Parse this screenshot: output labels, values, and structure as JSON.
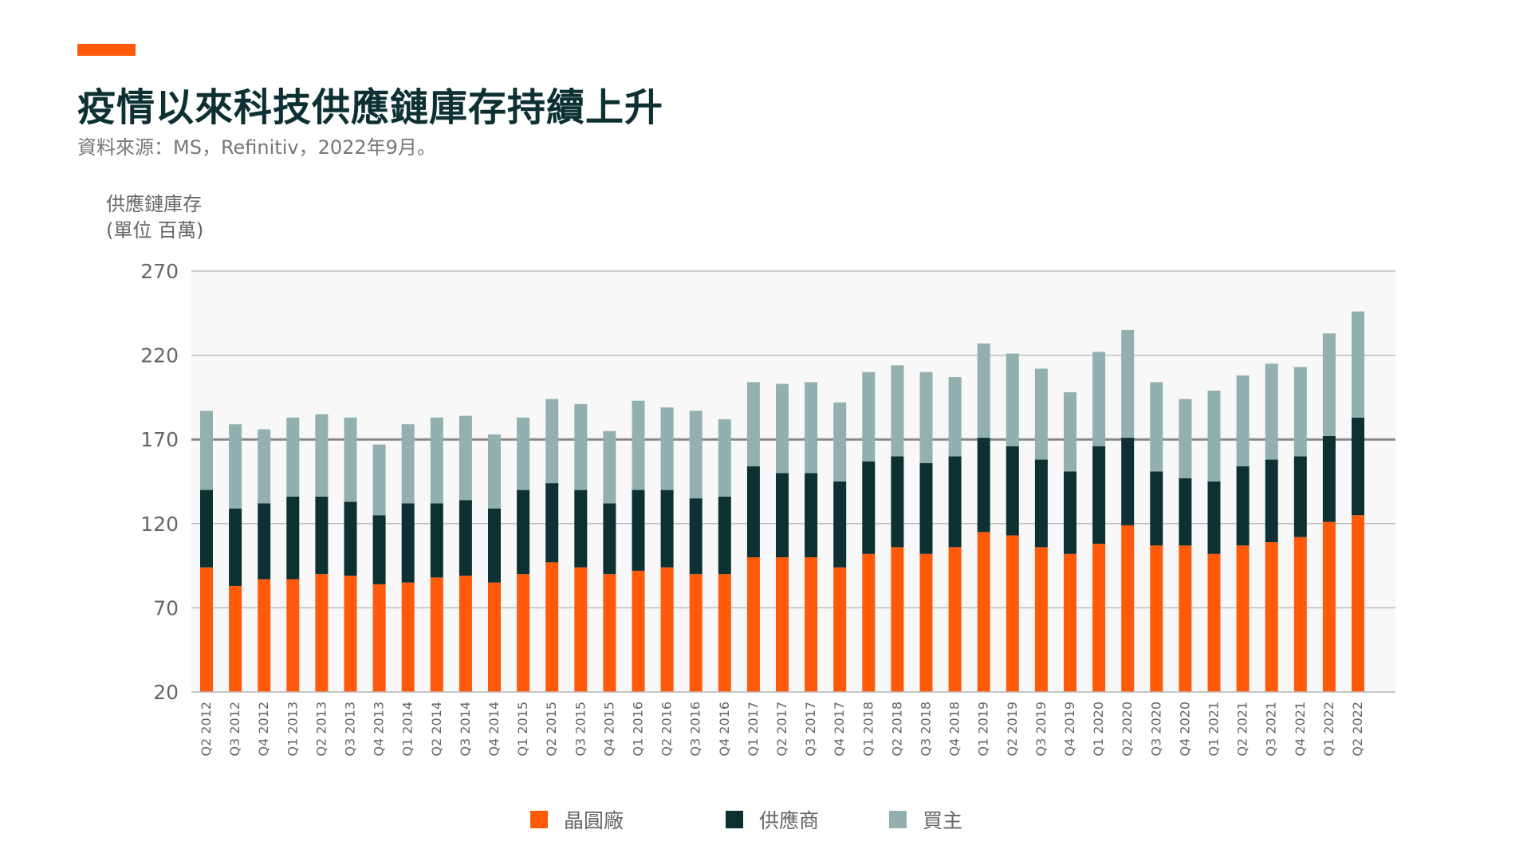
{
  "header": {
    "title": "疫情以來科技供應鏈庫存持續上升",
    "subtitle": "資料來源：MS，Refinitiv，2022年9月。"
  },
  "axis": {
    "ylabel_line1": "供應鏈庫存",
    "ylabel_line2": "(單位 百萬)"
  },
  "colors": {
    "accent": "#ff5a0a",
    "wafer": "#ff5a0a",
    "supplier": "#0d3033",
    "buyer": "#93b0b0",
    "plot_bg": "#f8f8f8",
    "grid": "#bdbdbd",
    "reference_line": "#888888"
  },
  "legend": [
    {
      "label": "晶圓廠",
      "color": "#ff5a0a"
    },
    {
      "label": "供應商",
      "color": "#0d3033"
    },
    {
      "label": "買主",
      "color": "#93b0b0"
    }
  ],
  "chart_data": {
    "type": "bar",
    "stacked": true,
    "title": "疫情以來科技供應鏈庫存持續上升",
    "ylabel": "供應鏈庫存 (單位 百萬)",
    "ylim": [
      20,
      270
    ],
    "yticks": [
      20,
      70,
      120,
      170,
      220,
      270
    ],
    "reference_line": 170,
    "grid": true,
    "legend_position": "bottom",
    "categories": [
      "Q2 2012",
      "Q3 2012",
      "Q4 2012",
      "Q1 2013",
      "Q2 2013",
      "Q3 2013",
      "Q4 2013",
      "Q1 2014",
      "Q2 2014",
      "Q3 2014",
      "Q4 2014",
      "Q1 2015",
      "Q2 2015",
      "Q3 2015",
      "Q4 2015",
      "Q1 2016",
      "Q2 2016",
      "Q3 2016",
      "Q4 2016",
      "Q1 2017",
      "Q2 2017",
      "Q3 2017",
      "Q4 2017",
      "Q1 2018",
      "Q2 2018",
      "Q3 2018",
      "Q4 2018",
      "Q1 2019",
      "Q2 2019",
      "Q3 2019",
      "Q4 2019",
      "Q1 2020",
      "Q2 2020",
      "Q3 2020",
      "Q4 2020",
      "Q1 2021",
      "Q2 2021",
      "Q3 2021",
      "Q4 2021",
      "Q1 2022",
      "Q2 2022"
    ],
    "series": [
      {
        "name": "晶圓廠",
        "values": [
          74,
          63,
          67,
          67,
          70,
          69,
          64,
          65,
          68,
          69,
          65,
          70,
          77,
          74,
          70,
          72,
          74,
          70,
          70,
          80,
          80,
          80,
          74,
          82,
          86,
          82,
          86,
          95,
          93,
          86,
          82,
          88,
          99,
          87,
          87,
          82,
          87,
          89,
          92,
          101,
          105
        ]
      },
      {
        "name": "供應商",
        "values": [
          46,
          46,
          45,
          49,
          46,
          44,
          41,
          47,
          44,
          45,
          44,
          50,
          47,
          46,
          42,
          48,
          46,
          45,
          46,
          54,
          50,
          50,
          51,
          55,
          54,
          54,
          54,
          56,
          53,
          52,
          49,
          58,
          52,
          44,
          40,
          43,
          47,
          49,
          48,
          51,
          58
        ]
      },
      {
        "name": "買主",
        "values": [
          47,
          50,
          44,
          47,
          49,
          50,
          42,
          47,
          51,
          50,
          44,
          43,
          50,
          51,
          43,
          53,
          49,
          52,
          46,
          50,
          53,
          54,
          47,
          53,
          54,
          54,
          47,
          56,
          55,
          54,
          47,
          56,
          64,
          53,
          47,
          54,
          54,
          57,
          53,
          61,
          63
        ]
      }
    ]
  }
}
